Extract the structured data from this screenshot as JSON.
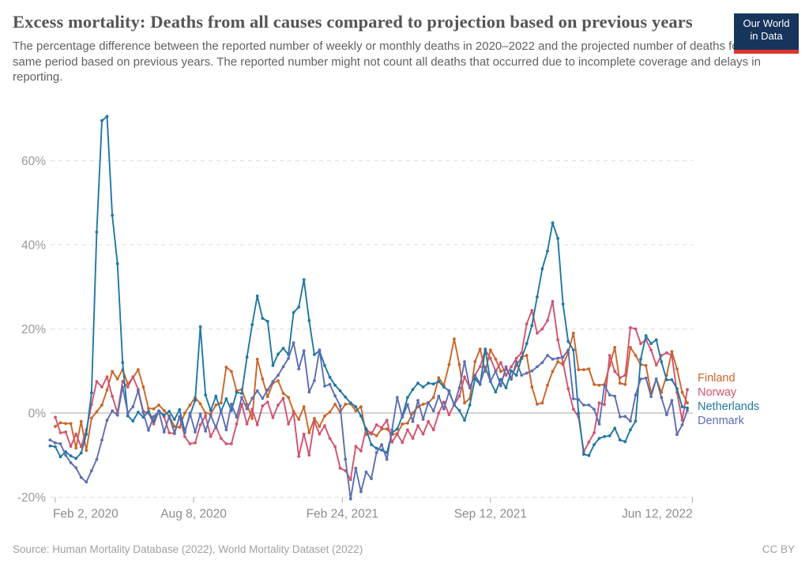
{
  "header": {
    "title": "Excess mortality: Deaths from all causes compared to projection based on previous years",
    "subtitle": "The percentage difference between the reported number of weekly or monthly deaths in 2020–2022 and the projected number of deaths for the same period based on previous years. The reported number might not count all deaths that occurred due to incomplete coverage and delays in reporting.",
    "logo": {
      "line1": "Our World",
      "line2": "in Data"
    }
  },
  "footer": {
    "source": "Source: Human Mortality Database (2022), World Mortality Dataset (2022)",
    "license": "CC BY"
  },
  "colors": {
    "finland": "#c96528",
    "norway": "#d0546e",
    "netherlands": "#2077a3",
    "denmark": "#5d6eb1",
    "grid": "#dddddd",
    "zero_line": "#c6c6c6",
    "axis_text": "#999999",
    "logo_bg": "#17355c",
    "logo_bar": "#dc352e"
  },
  "chart_data": {
    "type": "line",
    "title": "Excess mortality: Deaths from all causes compared to projection based on previous years",
    "xlabel": "",
    "ylabel": "",
    "grid": "dashed horizontal",
    "legend_position": "right",
    "y_axis": {
      "unit": "%",
      "ticks": [
        60,
        40,
        20,
        0,
        -20
      ],
      "tick_labels": [
        "60%",
        "40%",
        "20%",
        "0%",
        "-20%"
      ],
      "range": [
        -22,
        72
      ]
    },
    "x_axis": {
      "note": "weekly data, week index 0 = late Jan 2020",
      "ticks": [
        {
          "label": "Feb 2, 2020",
          "week": 1
        },
        {
          "label": "Aug 8, 2020",
          "week": 27.7
        },
        {
          "label": "Feb 24, 2021",
          "week": 56.4
        },
        {
          "label": "Sep 12, 2021",
          "week": 85
        },
        {
          "label": "Jun 12, 2022",
          "week": 124
        }
      ]
    },
    "series": [
      {
        "name": "Finland",
        "color": "#c96528",
        "values": [
          null,
          -3.2,
          -2.3,
          -2.5,
          -2.5,
          -8.3,
          -2,
          -8.9,
          -1.2,
          0.3,
          1.9,
          5.5,
          9.9,
          8.1,
          10.3,
          7,
          8.4,
          10.3,
          6.2,
          1.1,
          1,
          1.9,
          0.6,
          -0.7,
          -3.2,
          -3.4,
          0,
          1.9,
          3.7,
          2.2,
          0,
          -0.2,
          1.9,
          2.4,
          10.9,
          9.9,
          5.3,
          5.6,
          2.1,
          -1.3,
          12.8,
          8.1,
          3.9,
          7.1,
          7.7,
          4.7,
          3.7,
          0.4,
          -1.5,
          1.5,
          -4.7,
          -1.3,
          -3.2,
          -0.7,
          0.2,
          2.1,
          0.2,
          2.1,
          2.2,
          0.5,
          1.5,
          -5.1,
          -4.7,
          -5.4,
          -3.8,
          -3.8,
          -5.1,
          -4.9,
          -2.6,
          -2.4,
          0,
          1.5,
          2.1,
          2.4,
          3.7,
          8.4,
          6.6,
          11.5,
          17.6,
          11.5,
          2.4,
          3.4,
          12.2,
          15.2,
          9.9,
          15,
          12.8,
          9.9,
          10.5,
          8.4,
          11.3,
          13.3,
          13.7,
          6.2,
          2.1,
          2.4,
          6.6,
          9.9,
          12.2,
          11.5,
          14.3,
          19,
          10.3,
          10.3,
          10.5,
          6.8,
          6.6,
          6.8,
          11.3,
          15.6,
          7.1,
          6.8,
          15.6,
          13.7,
          11.5,
          11.3,
          4.7,
          8.1,
          4.9,
          9,
          14.6,
          10.5,
          4.9,
          2.4
        ]
      },
      {
        "name": "Norway",
        "color": "#d0546e",
        "values": [
          null,
          -1,
          -4.7,
          -4.5,
          -7.9,
          -5,
          -8,
          -4,
          2,
          7.5,
          6.2,
          8.6,
          4,
          0,
          7.5,
          6.2,
          8.6,
          5.6,
          0.4,
          0,
          -2.6,
          0.5,
          -0.9,
          -4.7,
          -4.9,
          -0.9,
          -5.6,
          -7.3,
          -7.1,
          -2.8,
          -0.7,
          -5.6,
          -3.2,
          -6,
          -7.3,
          -7.3,
          -2.6,
          2.1,
          -2.6,
          0.9,
          -2.8,
          1.7,
          2.6,
          -1.1,
          1.9,
          3.5,
          -2.6,
          0,
          -10.3,
          -5,
          -10,
          -2,
          -5,
          -3,
          -6,
          -8,
          -13.1,
          -13.7,
          -15.8,
          -7.9,
          -9,
          -3.8,
          -5,
          -2.8,
          -3.5,
          -1.7,
          -6.9,
          -5,
          -7,
          -4,
          -6,
          -3,
          -5,
          -2,
          -4,
          0,
          2.6,
          -0.4,
          2,
          4,
          8.6,
          6,
          9,
          11,
          15,
          13,
          10,
          12,
          9,
          11,
          13,
          14.3,
          21.2,
          24.4,
          19,
          20,
          22,
          26.5,
          17.4,
          12,
          5.8,
          0.9,
          -0.9,
          -9.2,
          -6.9,
          -4.7,
          2.4,
          2,
          13.7,
          9.9,
          8.4,
          9,
          20.3,
          20,
          16.5,
          17.4,
          15,
          11.4,
          13.7,
          14.3,
          13.7,
          4.9,
          -1.7,
          5.6
        ]
      },
      {
        "name": "Netherlands",
        "color": "#2077a3",
        "values": [
          -7.8,
          -8,
          -10.4,
          -9.2,
          -10.2,
          -10.8,
          -9.5,
          -5,
          4.8,
          43,
          69.5,
          70.5,
          47,
          35.5,
          12,
          -0.7,
          -1.9,
          0.2,
          -1,
          0.4,
          -1.9,
          0.5,
          -0.5,
          0.4,
          -1.5,
          0.8,
          -4.3,
          -0.5,
          3,
          20.5,
          4.3,
          0.6,
          4,
          0.4,
          3.4,
          0.6,
          4.9,
          4.7,
          13.3,
          21,
          27.8,
          22.5,
          21.8,
          11.3,
          14,
          15.4,
          13.9,
          23.9,
          25.2,
          31.7,
          22,
          13.9,
          14.8,
          11.3,
          8.5,
          6.6,
          5.3,
          3.8,
          2.4,
          1.5,
          -0.7,
          -3.8,
          -7.5,
          -8.4,
          -8.8,
          -9.4,
          -4.7,
          -3.8,
          -0.7,
          3.7,
          5.6,
          7.1,
          6.2,
          7.1,
          6.9,
          7.5,
          6.2,
          5.3,
          1.9,
          0.6,
          -1.7,
          1.9,
          8.1,
          6.8,
          15.2,
          7.5,
          5,
          8,
          6,
          10,
          9,
          13,
          16.5,
          20.8,
          27.6,
          34.3,
          38.5,
          45.2,
          41.5,
          25.9,
          17,
          15,
          0,
          -9.8,
          -10.1,
          -7.5,
          -6,
          -5.6,
          -5.4,
          -3.6,
          -6.4,
          -6.8,
          -4,
          -1.9,
          12.8,
          18.4,
          16.5,
          17.4,
          12.2,
          7.9,
          7.9,
          5.8,
          1.5,
          1.2
        ]
      },
      {
        "name": "Denmark",
        "color": "#5d6eb1",
        "values": [
          -6.4,
          -7.1,
          -7.3,
          -10,
          -11.8,
          -13,
          -15.3,
          -16.4,
          -13.7,
          -11,
          -6.4,
          -1.7,
          0.5,
          -0.5,
          6.2,
          0,
          1.5,
          5.3,
          0,
          -4.1,
          -0.8,
          0.4,
          -4.5,
          -0.8,
          -4.7,
          -0.8,
          -4.7,
          0,
          -4.5,
          -0.2,
          -4.3,
          -0.5,
          -3.5,
          0.5,
          -4,
          2.1,
          -1,
          3.7,
          1,
          3.5,
          5.3,
          3.5,
          5.5,
          7.5,
          9,
          11,
          13,
          16.7,
          10.5,
          14.8,
          5,
          7.7,
          15,
          6.4,
          6.8,
          4.1,
          1.7,
          -11,
          -20.4,
          -13.1,
          -18.7,
          -14,
          -15.6,
          -9.4,
          -7.5,
          -11,
          -4,
          3.7,
          -1,
          2,
          -2,
          3,
          -1.5,
          2.5,
          0.5,
          4,
          1,
          5,
          2,
          6,
          12.2,
          6,
          9,
          7,
          10.9,
          7.5,
          10,
          6.5,
          11,
          8,
          12.2,
          9,
          9.5,
          10,
          11,
          12,
          13.7,
          12.8,
          13,
          13.3,
          15,
          3.4,
          3.2,
          1.9,
          1.9,
          0.9,
          -2.6,
          6.6,
          4.3,
          4,
          -0.9,
          -0.8,
          -1.9,
          4.3,
          8.1,
          8.3,
          3.9,
          8.1,
          3.7,
          -0.4,
          3,
          -5.1,
          -2.8,
          0.6
        ]
      }
    ]
  }
}
